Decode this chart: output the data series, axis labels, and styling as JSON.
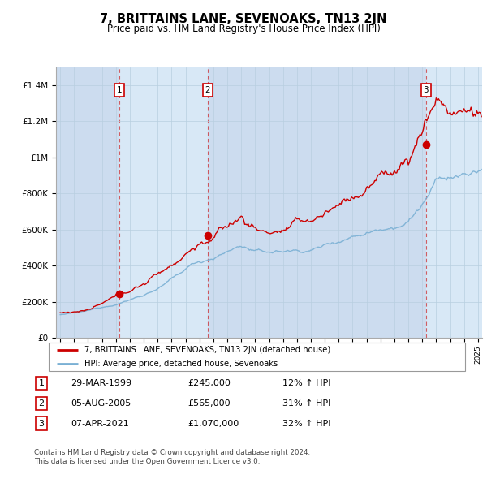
{
  "title": "7, BRITTAINS LANE, SEVENOAKS, TN13 2JN",
  "subtitle": "Price paid vs. HM Land Registry's House Price Index (HPI)",
  "red_color": "#cc0000",
  "blue_color": "#7ab0d4",
  "plot_bg_color": "#dce8f5",
  "shaded_col_color": "#ccddf0",
  "purchases": [
    {
      "date_x": 1999.24,
      "price": 245000,
      "label": "1"
    },
    {
      "date_x": 2005.59,
      "price": 565000,
      "label": "2"
    },
    {
      "date_x": 2021.27,
      "price": 1070000,
      "label": "3"
    }
  ],
  "legend_entries": [
    "7, BRITTAINS LANE, SEVENOAKS, TN13 2JN (detached house)",
    "HPI: Average price, detached house, Sevenoaks"
  ],
  "table_data": [
    [
      "1",
      "29-MAR-1999",
      "£245,000",
      "12% ↑ HPI"
    ],
    [
      "2",
      "05-AUG-2005",
      "£565,000",
      "31% ↑ HPI"
    ],
    [
      "3",
      "07-APR-2021",
      "£1,070,000",
      "32% ↑ HPI"
    ]
  ],
  "footer": "Contains HM Land Registry data © Crown copyright and database right 2024.\nThis data is licensed under the Open Government Licence v3.0.",
  "ylim": [
    0,
    1500000
  ],
  "xlim_start": 1994.7,
  "xlim_end": 2025.3,
  "yticks": [
    0,
    200000,
    400000,
    600000,
    800000,
    1000000,
    1200000,
    1400000
  ],
  "ytick_labels": [
    "£0",
    "£200K",
    "£400K",
    "£600K",
    "£800K",
    "£1M",
    "£1.2M",
    "£1.4M"
  ]
}
